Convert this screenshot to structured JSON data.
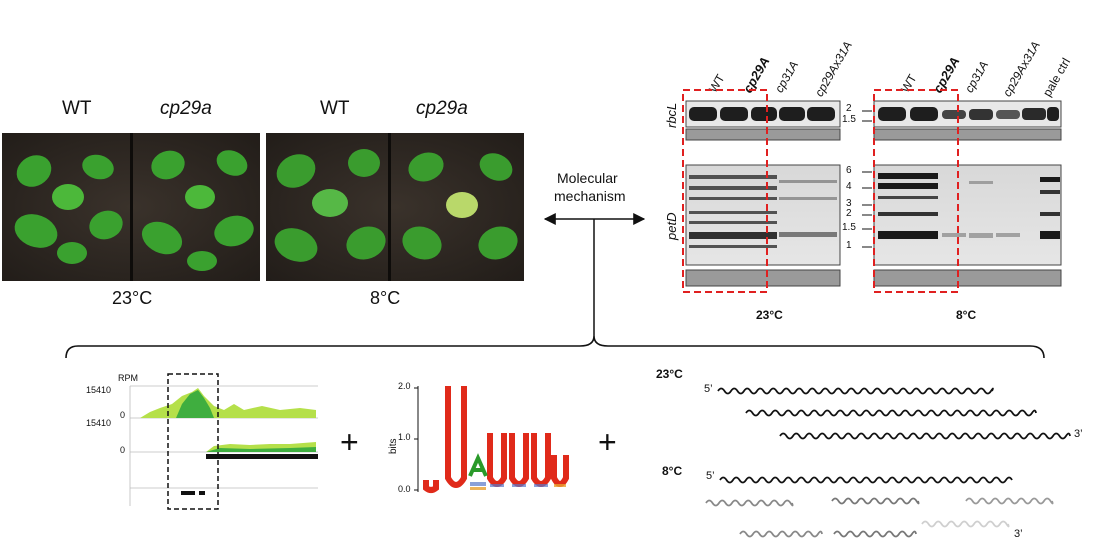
{
  "photos": {
    "left": {
      "label_a": "WT",
      "label_b": "cp29a",
      "temp": "23°C"
    },
    "right": {
      "label_a": "WT",
      "label_b": "cp29a",
      "temp": "8°C"
    }
  },
  "mechanism": {
    "line1": "Molecular",
    "line2": "mechanism"
  },
  "blots": {
    "lanes_23": [
      "WT",
      "cp29A",
      "cp31A",
      "cp29Ax31A"
    ],
    "lanes_8": [
      "WT",
      "cp29A",
      "cp31A",
      "cp29Ax31A",
      "pale ctrl"
    ],
    "rbcl_label": "rbcL",
    "petd_label": "petD",
    "rbcl_markers": [
      "2",
      "1.5"
    ],
    "petd_markers": [
      "6",
      "4",
      "3",
      "2",
      "1.5",
      "1"
    ],
    "temp_23": "23°C",
    "temp_8": "8°C"
  },
  "coverage": {
    "rpm_label": "RPM",
    "top_scale": "15410",
    "top_zero": "0",
    "bottom_scale": "15410",
    "bottom_zero": "0"
  },
  "plus": "+",
  "logo": {
    "ylabel": "bits",
    "ticks": [
      "2.0",
      "1.0",
      "0.0"
    ],
    "letters": [
      "U",
      "U",
      "A",
      "U",
      "U",
      "U",
      "U"
    ]
  },
  "rna": {
    "temp_23": "23°C",
    "temp_8": "8°C",
    "five": "5’",
    "three": "3’"
  }
}
